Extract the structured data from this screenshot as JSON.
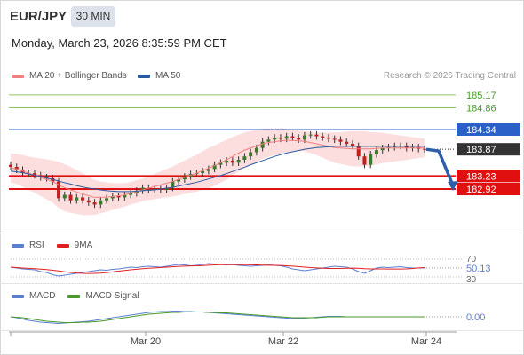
{
  "header": {
    "symbol": "EUR/JPY",
    "timeframe": "30 MIN",
    "datetime": "Monday, March 23, 2026 8:35:59 PM CET"
  },
  "legend": {
    "item1": "MA 20 + Bollinger Bands",
    "item2": "MA 50",
    "copyright": "Research © 2026 Trading Central"
  },
  "colors": {
    "ma20": "#f08080",
    "ma50": "#2c5aa0",
    "band": "#fbd8d8",
    "resistance_green": "#90c060",
    "pivot_blue": "#2a60c8",
    "support_red": "#e01010",
    "candle_up": "#3a7a2a",
    "candle_down": "#c02020",
    "arrow": "#2f5ea8",
    "rsi": "#5b7fd0",
    "rsi_ma": "#e02020",
    "macd": "#5b7fd0",
    "macd_signal": "#4a9a2a"
  },
  "levels": [
    {
      "value": "185.17",
      "type": "resistance"
    },
    {
      "value": "184.86",
      "type": "resistance"
    },
    {
      "value": "184.34",
      "type": "pivot"
    },
    {
      "value": "183.87",
      "type": "last"
    },
    {
      "value": "183.23",
      "type": "support"
    },
    {
      "value": "182.92",
      "type": "support"
    }
  ],
  "rsi_panel": {
    "label": "RSI",
    "ma_label": "9MA",
    "upper": "70",
    "lower": "30",
    "value": "50.13"
  },
  "macd_panel": {
    "label": "MACD",
    "signal_label": "MACD Signal",
    "value": "0.00"
  },
  "x_axis": [
    "Mar 20",
    "Mar 22",
    "Mar 24"
  ],
  "chart_data": {
    "type": "candlestick",
    "title": "EUR/JPY",
    "x_ticks": [
      "Mar 20",
      "Mar 22",
      "Mar 24"
    ],
    "close": [
      183.45,
      183.38,
      183.3,
      183.3,
      183.25,
      183.2,
      183.18,
      183.1,
      182.7,
      182.78,
      182.65,
      182.72,
      182.65,
      182.6,
      182.55,
      182.65,
      182.7,
      182.75,
      182.72,
      182.78,
      182.82,
      182.88,
      182.95,
      182.9,
      182.92,
      182.9,
      182.95,
      183.1,
      183.15,
      183.22,
      183.28,
      183.3,
      183.35,
      183.4,
      183.5,
      183.55,
      183.6,
      183.55,
      183.62,
      183.7,
      183.8,
      183.9,
      184.05,
      184.1,
      184.15,
      184.12,
      184.18,
      184.15,
      184.1,
      184.2,
      184.22,
      184.18,
      184.15,
      184.12,
      184.1,
      184.05,
      184.0,
      183.95,
      183.7,
      183.5,
      183.75,
      183.85,
      183.9,
      183.92,
      183.95,
      183.95,
      183.9,
      183.92,
      183.88,
      183.87
    ],
    "ma20": [
      183.42,
      183.4,
      183.35,
      183.3,
      183.25,
      183.2,
      183.15,
      183.1,
      183.02,
      182.95,
      182.9,
      182.85,
      182.8,
      182.76,
      182.72,
      182.72,
      182.73,
      182.74,
      182.76,
      182.78,
      182.82,
      182.86,
      182.9,
      182.94,
      182.98,
      183.02,
      183.06,
      183.1,
      183.15,
      183.2,
      183.25,
      183.3,
      183.36,
      183.42,
      183.48,
      183.55,
      183.62,
      183.7,
      183.78,
      183.85,
      183.9,
      183.95,
      184.0,
      184.03,
      184.05,
      184.07,
      184.08,
      184.08,
      184.07,
      184.06,
      184.03,
      184.0,
      183.97,
      183.94,
      183.91,
      183.9,
      183.89,
      183.88,
      183.88,
      183.88,
      183.88,
      183.89,
      183.9,
      183.9,
      183.9,
      183.9,
      183.9,
      183.9,
      183.9,
      183.9
    ],
    "ma50": [
      183.35,
      183.33,
      183.31,
      183.28,
      183.25,
      183.22,
      183.18,
      183.15,
      183.11,
      183.07,
      183.04,
      183.0,
      182.97,
      182.94,
      182.92,
      182.9,
      182.88,
      182.87,
      182.86,
      182.86,
      182.86,
      182.87,
      182.88,
      182.89,
      182.9,
      182.92,
      182.94,
      182.96,
      182.99,
      183.02,
      183.05,
      183.08,
      183.12,
      183.16,
      183.2,
      183.24,
      183.29,
      183.34,
      183.39,
      183.44,
      183.5,
      183.55,
      183.6,
      183.65,
      183.7,
      183.74,
      183.78,
      183.81,
      183.84,
      183.87,
      183.89,
      183.91,
      183.92,
      183.93,
      183.94,
      183.94,
      183.94,
      183.94,
      183.94,
      183.94,
      183.94,
      183.94,
      183.94,
      183.94,
      183.94,
      183.94,
      183.94,
      183.94,
      183.94,
      183.94
    ],
    "band_width": [
      0.35,
      0.36,
      0.38,
      0.4,
      0.42,
      0.45,
      0.48,
      0.5,
      0.55,
      0.56,
      0.55,
      0.52,
      0.5,
      0.46,
      0.42,
      0.38,
      0.35,
      0.32,
      0.3,
      0.28,
      0.27,
      0.27,
      0.27,
      0.28,
      0.3,
      0.32,
      0.34,
      0.36,
      0.38,
      0.4,
      0.42,
      0.44,
      0.46,
      0.48,
      0.48,
      0.48,
      0.48,
      0.46,
      0.44,
      0.42,
      0.4,
      0.38,
      0.36,
      0.34,
      0.32,
      0.3,
      0.28,
      0.26,
      0.24,
      0.24,
      0.25,
      0.27,
      0.3,
      0.33,
      0.36,
      0.38,
      0.4,
      0.42,
      0.42,
      0.42,
      0.4,
      0.38,
      0.36,
      0.34,
      0.32,
      0.3,
      0.28,
      0.26,
      0.24,
      0.22
    ],
    "rsi": [
      52,
      50,
      48,
      47,
      46,
      42,
      40,
      35,
      32,
      34,
      36,
      38,
      40,
      42,
      44,
      46,
      45,
      47,
      48,
      50,
      52,
      51,
      53,
      54,
      53,
      52,
      54,
      56,
      58,
      57,
      55,
      56,
      58,
      60,
      59,
      58,
      57,
      58,
      56,
      55,
      54,
      55,
      56,
      57,
      56,
      55,
      52,
      48,
      46,
      44,
      46,
      48,
      50,
      52,
      54,
      53,
      52,
      48,
      42,
      38,
      44,
      50,
      52,
      51,
      52,
      53,
      51,
      50,
      50,
      50.13
    ],
    "macd": [
      0.0,
      -0.02,
      -0.05,
      -0.08,
      -0.1,
      -0.12,
      -0.13,
      -0.14,
      -0.15,
      -0.14,
      -0.13,
      -0.12,
      -0.11,
      -0.1,
      -0.08,
      -0.06,
      -0.04,
      -0.02,
      0.0,
      0.02,
      0.04,
      0.06,
      0.08,
      0.1,
      0.11,
      0.12,
      0.12,
      0.13,
      0.13,
      0.12,
      0.12,
      0.11,
      0.11,
      0.1,
      0.09,
      0.08,
      0.07,
      0.06,
      0.05,
      0.04,
      0.03,
      0.02,
      0.01,
      0.0,
      -0.01,
      -0.02,
      -0.03,
      -0.04,
      -0.04,
      -0.03,
      -0.02,
      -0.01,
      0.0,
      0.01,
      0.01,
      0.01,
      0.0,
      0.0,
      0.0,
      0.0,
      0.0,
      0.0,
      0.0,
      0.0,
      0.0,
      0.0,
      0.0,
      0.0,
      0.0,
      0.0
    ],
    "macd_signal": [
      0.0,
      -0.01,
      -0.02,
      -0.04,
      -0.06,
      -0.08,
      -0.1,
      -0.11,
      -0.12,
      -0.13,
      -0.13,
      -0.13,
      -0.12,
      -0.12,
      -0.11,
      -0.1,
      -0.08,
      -0.06,
      -0.04,
      -0.02,
      0.0,
      0.02,
      0.04,
      0.06,
      0.07,
      0.08,
      0.09,
      0.1,
      0.1,
      0.11,
      0.11,
      0.11,
      0.11,
      0.1,
      0.1,
      0.09,
      0.09,
      0.08,
      0.07,
      0.06,
      0.05,
      0.04,
      0.03,
      0.02,
      0.01,
      0.0,
      -0.01,
      -0.02,
      -0.02,
      -0.02,
      -0.02,
      -0.02,
      -0.01,
      0.0,
      0.0,
      0.0,
      0.0,
      0.0,
      0.0,
      0.0,
      0.0,
      0.0,
      0.0,
      0.0,
      0.0,
      0.0,
      0.0,
      0.0,
      0.0,
      0.0
    ],
    "projection": {
      "from": 183.87,
      "to": 182.92
    }
  }
}
